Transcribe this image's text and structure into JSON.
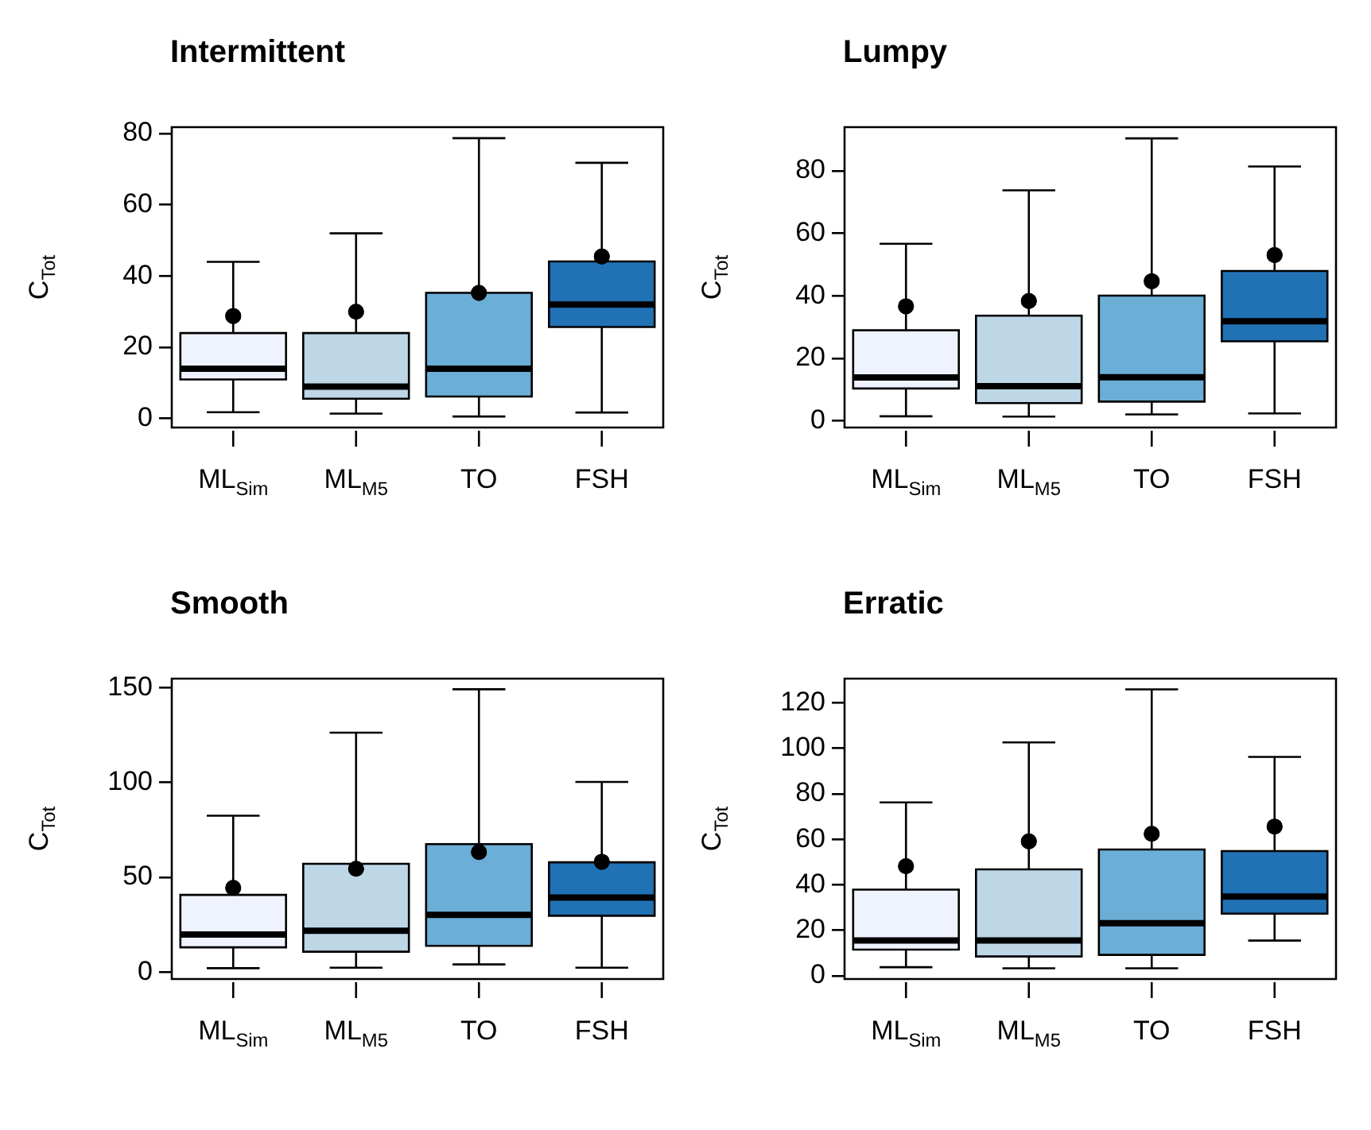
{
  "chart_data": [
    {
      "type": "box",
      "title": "Intermittent",
      "ylabel": "C$_{Tot}$",
      "categories": [
        "ML$_{Sim}$",
        "ML$_{M5}$",
        "TO",
        "FSH"
      ],
      "colors": [
        "#eff3ff",
        "#bdd7e7",
        "#6baed6",
        "#2171b5"
      ],
      "ylim": [
        -2.5,
        81.8
      ],
      "yticks": [
        0,
        20,
        40,
        60,
        80
      ],
      "boxes": [
        {
          "low": 1.8,
          "q1": 11,
          "median": 14,
          "q3": 24,
          "high": 44,
          "mean": 28.8
        },
        {
          "low": 1.4,
          "q1": 5.6,
          "median": 9,
          "q3": 24,
          "high": 52,
          "mean": 30
        },
        {
          "low": 0.6,
          "q1": 6.2,
          "median": 14,
          "q3": 35.3,
          "high": 78.7,
          "mean": 35.3
        },
        {
          "low": 1.7,
          "q1": 25.7,
          "median": 32,
          "q3": 44.1,
          "high": 71.8,
          "mean": 45.5
        }
      ]
    },
    {
      "type": "box",
      "title": "Lumpy",
      "ylabel": "C$_{Tot}$",
      "categories": [
        "ML$_{Sim}$",
        "ML$_{M5}$",
        "TO",
        "FSH"
      ],
      "colors": [
        "#eff3ff",
        "#bdd7e7",
        "#6baed6",
        "#2171b5"
      ],
      "ylim": [
        -2.1,
        94
      ],
      "yticks": [
        0,
        20,
        40,
        60,
        80
      ],
      "boxes": [
        {
          "low": 1.5,
          "q1": 10.4,
          "median": 13.9,
          "q3": 29,
          "high": 56.7,
          "mean": 36.7
        },
        {
          "low": 1.4,
          "q1": 5.7,
          "median": 11.1,
          "q3": 33.7,
          "high": 73.8,
          "mean": 38.4
        },
        {
          "low": 2.1,
          "q1": 6.2,
          "median": 14,
          "q3": 40.1,
          "high": 90.4,
          "mean": 44.7
        },
        {
          "low": 2.4,
          "q1": 25.5,
          "median": 31.9,
          "q3": 48,
          "high": 81.4,
          "mean": 53.1
        }
      ]
    },
    {
      "type": "box",
      "title": "Smooth",
      "ylabel": "C$_{Tot}$",
      "categories": [
        "ML$_{Sim}$",
        "ML$_{M5}$",
        "TO",
        "FSH"
      ],
      "colors": [
        "#eff3ff",
        "#bdd7e7",
        "#6baed6",
        "#2171b5"
      ],
      "ylim": [
        -3.7,
        154.8
      ],
      "yticks": [
        0,
        50,
        100,
        150
      ],
      "boxes": [
        {
          "low": 2,
          "q1": 13,
          "median": 19.8,
          "q3": 40.7,
          "high": 82.5,
          "mean": 44.4
        },
        {
          "low": 2.3,
          "q1": 10.7,
          "median": 21.8,
          "q3": 57.1,
          "high": 126.3,
          "mean": 54.5
        },
        {
          "low": 4,
          "q1": 13.8,
          "median": 30.2,
          "q3": 67.5,
          "high": 149.2,
          "mean": 63.3
        },
        {
          "low": 2.3,
          "q1": 29.7,
          "median": 39.3,
          "q3": 57.9,
          "high": 100.3,
          "mean": 58.2
        }
      ]
    },
    {
      "type": "box",
      "title": "Erratic",
      "ylabel": "C$_{Tot}$",
      "categories": [
        "ML$_{Sim}$",
        "ML$_{M5}$",
        "TO",
        "FSH"
      ],
      "colors": [
        "#eff3ff",
        "#bdd7e7",
        "#6baed6",
        "#2171b5"
      ],
      "ylim": [
        -1.4,
        130.6
      ],
      "yticks": [
        0,
        20,
        40,
        60,
        80,
        100,
        120
      ],
      "boxes": [
        {
          "low": 3.8,
          "q1": 11.5,
          "median": 15.5,
          "q3": 37.9,
          "high": 76.2,
          "mean": 48.2
        },
        {
          "low": 3.3,
          "q1": 8.5,
          "median": 15.5,
          "q3": 46.8,
          "high": 102.6,
          "mean": 59.1
        },
        {
          "low": 3.3,
          "q1": 9.2,
          "median": 23.1,
          "q3": 55.5,
          "high": 125.9,
          "mean": 62.4
        },
        {
          "low": 15.5,
          "q1": 27.3,
          "median": 34.8,
          "q3": 54.8,
          "high": 96.2,
          "mean": 65.6
        }
      ]
    }
  ]
}
